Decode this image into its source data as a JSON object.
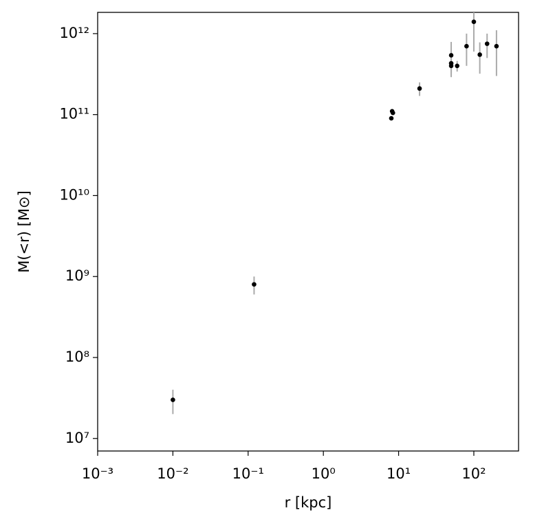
{
  "chart_data": {
    "type": "scatter",
    "x_label": "r [kpc]",
    "y_label": "M(<r) [M⊙]",
    "x": [
      0.01,
      0.12,
      8.0,
      8.2,
      8.4,
      19,
      50,
      50,
      50,
      60,
      80,
      100,
      120,
      150,
      200
    ],
    "values": [
      30000000.0,
      800000000.0,
      90000000000.0,
      110000000000.0,
      105000000000.0,
      210000000000.0,
      540000000000.0,
      430000000000.0,
      400000000000.0,
      400000000000.0,
      700000000000.0,
      1400000000000.0,
      550000000000.0,
      750000000000.0,
      700000000000.0
    ],
    "yerr": [
      10000000.0,
      200000000.0,
      null,
      null,
      null,
      40000000000.0,
      250000000000.0,
      100000000000.0,
      100000000000.0,
      60000000000.0,
      300000000000.0,
      800000000000.0,
      230000000000.0,
      250000000000.0,
      400000000000.0
    ],
    "color": "#000000",
    "err_color": "#aaaaaa",
    "log_x": true,
    "log_y": true,
    "xlim": [
      0.001,
      393
    ],
    "ylim": [
      7000000.0,
      1830000000000.0
    ],
    "xticks": [
      {
        "value": 0.001,
        "label": "10⁻³"
      },
      {
        "value": 0.01,
        "label": "10⁻²"
      },
      {
        "value": 0.1,
        "label": "10⁻¹"
      },
      {
        "value": 1,
        "label": "10⁰"
      },
      {
        "value": 10,
        "label": "10¹"
      },
      {
        "value": 100,
        "label": "10²"
      }
    ],
    "yticks": [
      {
        "value": 10000000.0,
        "label": "10⁷"
      },
      {
        "value": 100000000.0,
        "label": "10⁸"
      },
      {
        "value": 1000000000.0,
        "label": "10⁹"
      },
      {
        "value": 10000000000.0,
        "label": "10¹⁰"
      },
      {
        "value": 100000000000.0,
        "label": "10¹¹"
      },
      {
        "value": 1000000000000.0,
        "label": "10¹²"
      }
    ]
  }
}
